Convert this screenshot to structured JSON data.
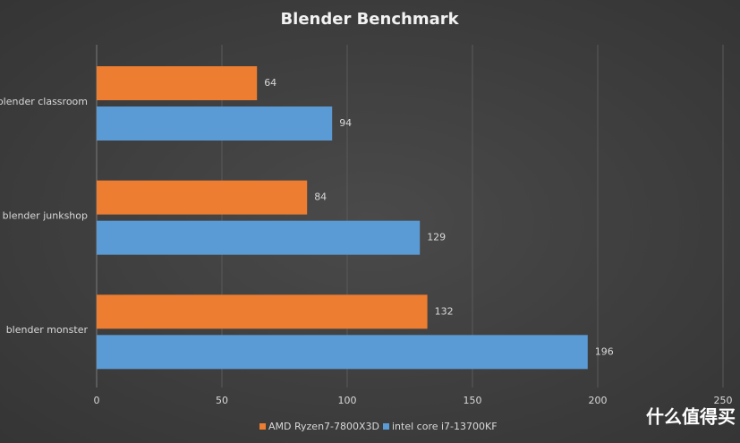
{
  "chart_data": {
    "type": "bar",
    "orientation": "horizontal",
    "title": "Blender Benchmark",
    "categories": [
      "blender classroom",
      "blender junkshop",
      "blender monster"
    ],
    "series": [
      {
        "name": "AMD Ryzen7-7800X3D",
        "color": "#ed7d31",
        "values": [
          64,
          84,
          132
        ]
      },
      {
        "name": "intel core i7-13700KF",
        "color": "#5b9bd5",
        "values": [
          94,
          129,
          196
        ]
      }
    ],
    "xlim": [
      0,
      250
    ],
    "xticks": [
      0,
      50,
      100,
      150,
      200,
      250
    ],
    "grid": true,
    "legend": "bottom",
    "watermark": "什么值得买"
  }
}
